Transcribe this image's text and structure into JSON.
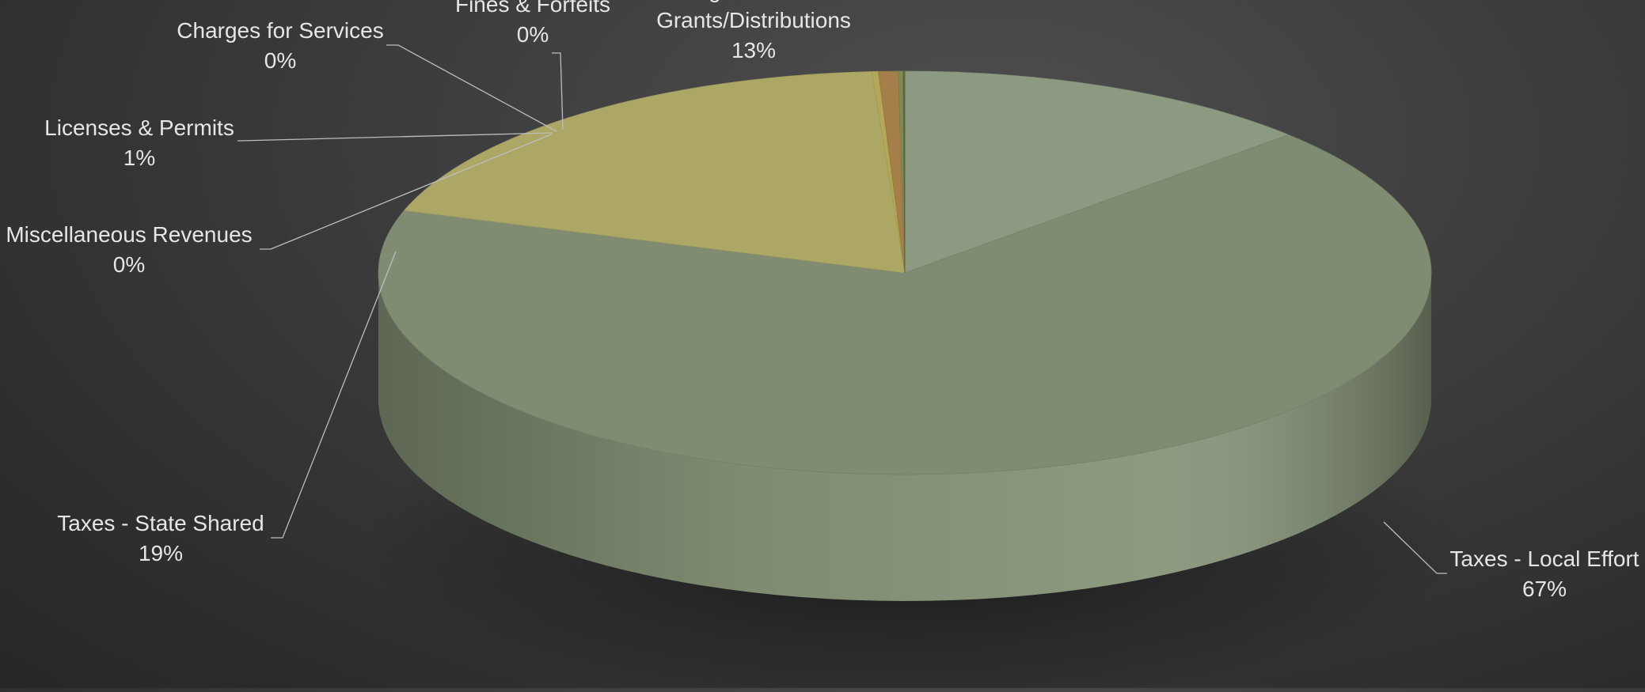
{
  "chart_data": {
    "type": "pie",
    "style": "3d",
    "title": "",
    "legend": "none",
    "slices": [
      {
        "name": "Intergovernmental\nGrants/Distributions",
        "label": "13%",
        "value": 13,
        "color": "#8d9a82"
      },
      {
        "name": "Taxes - Local Effort",
        "label": "67%",
        "value": 67,
        "color": "#7f8c71"
      },
      {
        "name": "Taxes - State Shared",
        "label": "19%",
        "value": 19,
        "color": "#aca765"
      },
      {
        "name": "Miscellaneous Revenues",
        "label": "0%",
        "value": 0.2,
        "color": "#b3a857"
      },
      {
        "name": "Licenses & Permits",
        "label": "1%",
        "value": 0.6,
        "color": "#a57f4a"
      },
      {
        "name": "Charges for Services",
        "label": "0%",
        "value": 0.15,
        "color": "#7c8a54"
      },
      {
        "name": "Fines & Forfeits",
        "label": "0%",
        "value": 0.05,
        "color": "#5f6b49"
      }
    ]
  }
}
